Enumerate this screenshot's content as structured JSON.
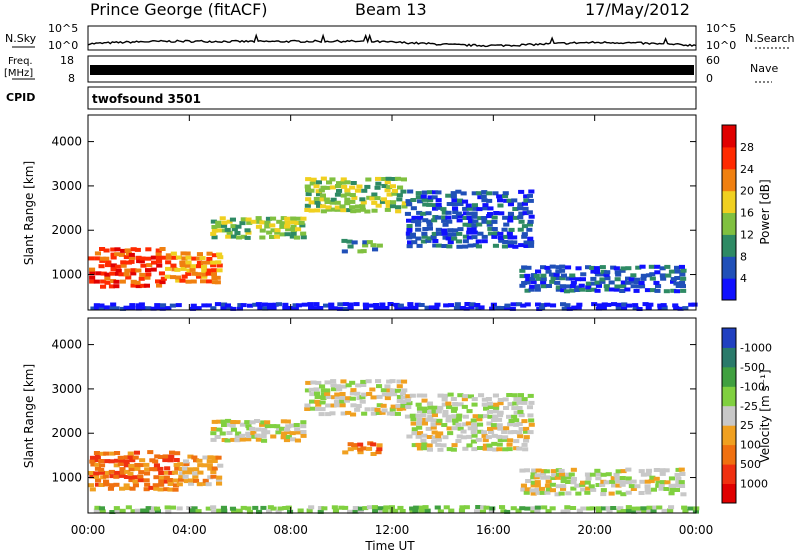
{
  "header": {
    "station": "Prince George (fitACF)",
    "beam": "Beam 13",
    "date": "17/May/2012"
  },
  "strips": {
    "nsky": {
      "label": "N.Sky",
      "tick_hi": "10^5",
      "tick_lo": "10^0"
    },
    "nsearch": {
      "label": "N.Search",
      "tick_hi": "10^5",
      "tick_lo": "10^0"
    },
    "freq": {
      "label_top": "Freq.",
      "label_unit": "[MHz]",
      "tick_hi": "18",
      "tick_lo": "8"
    },
    "nave": {
      "label": "Nave",
      "tick_hi": "60",
      "tick_lo": "0"
    },
    "cpid": {
      "label": "CPID",
      "program": "twofsound 3501"
    }
  },
  "chart_data": [
    {
      "type": "heatmap",
      "name": "power",
      "ylabel": "Slant Range [km]",
      "ylim": [
        200,
        4600
      ],
      "yticks": [
        "1000",
        "2000",
        "3000",
        "4000"
      ],
      "colorbar": {
        "label": "Power [dB]",
        "ticks": [
          "4",
          "8",
          "12",
          "16",
          "20",
          "24",
          "28"
        ],
        "colors": [
          "#1010ff",
          "#2050b8",
          "#2e8a64",
          "#80c040",
          "#f0d020",
          "#f08010",
          "#ff2a00",
          "#e00000"
        ]
      },
      "bands": [
        {
          "h0": 0.0,
          "h1": 3.0,
          "lo": 700,
          "hi": 1600,
          "level": 6
        },
        {
          "h0": 3.0,
          "h1": 5.2,
          "lo": 800,
          "hi": 1500,
          "level": 5
        },
        {
          "h0": 4.8,
          "h1": 8.5,
          "lo": 1800,
          "hi": 2300,
          "level": 3
        },
        {
          "h0": 8.5,
          "h1": 12.5,
          "lo": 2400,
          "hi": 3200,
          "level": 3
        },
        {
          "h0": 12.5,
          "h1": 17.5,
          "lo": 1600,
          "hi": 2900,
          "level": 1
        },
        {
          "h0": 10.0,
          "h1": 11.5,
          "lo": 1500,
          "hi": 1800,
          "level": 2
        },
        {
          "h0": 17.0,
          "h1": 23.5,
          "lo": 600,
          "hi": 1200,
          "level": 1
        },
        {
          "h0": 0.0,
          "h1": 24.0,
          "lo": 200,
          "hi": 350,
          "level": 0
        }
      ]
    },
    {
      "type": "heatmap",
      "name": "velocity",
      "ylabel": "Slant Range [km]",
      "ylim": [
        200,
        4600
      ],
      "yticks": [
        "1000",
        "2000",
        "3000",
        "4000"
      ],
      "xticks": [
        "00:00",
        "04:00",
        "08:00",
        "12:00",
        "16:00",
        "20:00",
        "00:00"
      ],
      "xlabel": "Time UT",
      "colorbar": {
        "label": "Velocity [m s⁻¹]",
        "ticks": [
          "1000",
          "500",
          "100",
          "25",
          "-25",
          "-100",
          "-500",
          "-1000"
        ],
        "colors": [
          "#2040c0",
          "#2a7a6a",
          "#40a040",
          "#80d040",
          "#c8c8c8",
          "#f0a020",
          "#f07010",
          "#f03010",
          "#e00000"
        ]
      },
      "bands": [
        {
          "h0": 0.0,
          "h1": 3.5,
          "lo": 700,
          "hi": 1600,
          "level": 6
        },
        {
          "h0": 3.5,
          "h1": 5.2,
          "lo": 800,
          "hi": 1500,
          "level": 5
        },
        {
          "h0": 4.8,
          "h1": 8.5,
          "lo": 1800,
          "hi": 2300,
          "level": 4
        },
        {
          "h0": 8.5,
          "h1": 12.5,
          "lo": 2400,
          "hi": 3200,
          "level": 4
        },
        {
          "h0": 12.5,
          "h1": 17.5,
          "lo": 1600,
          "hi": 2900,
          "level": 4
        },
        {
          "h0": 10.0,
          "h1": 11.5,
          "lo": 1500,
          "hi": 1800,
          "level": 6
        },
        {
          "h0": 17.0,
          "h1": 23.5,
          "lo": 600,
          "hi": 1200,
          "level": 4
        },
        {
          "h0": 0.0,
          "h1": 24.0,
          "lo": 200,
          "hi": 350,
          "level": 3
        }
      ]
    }
  ]
}
